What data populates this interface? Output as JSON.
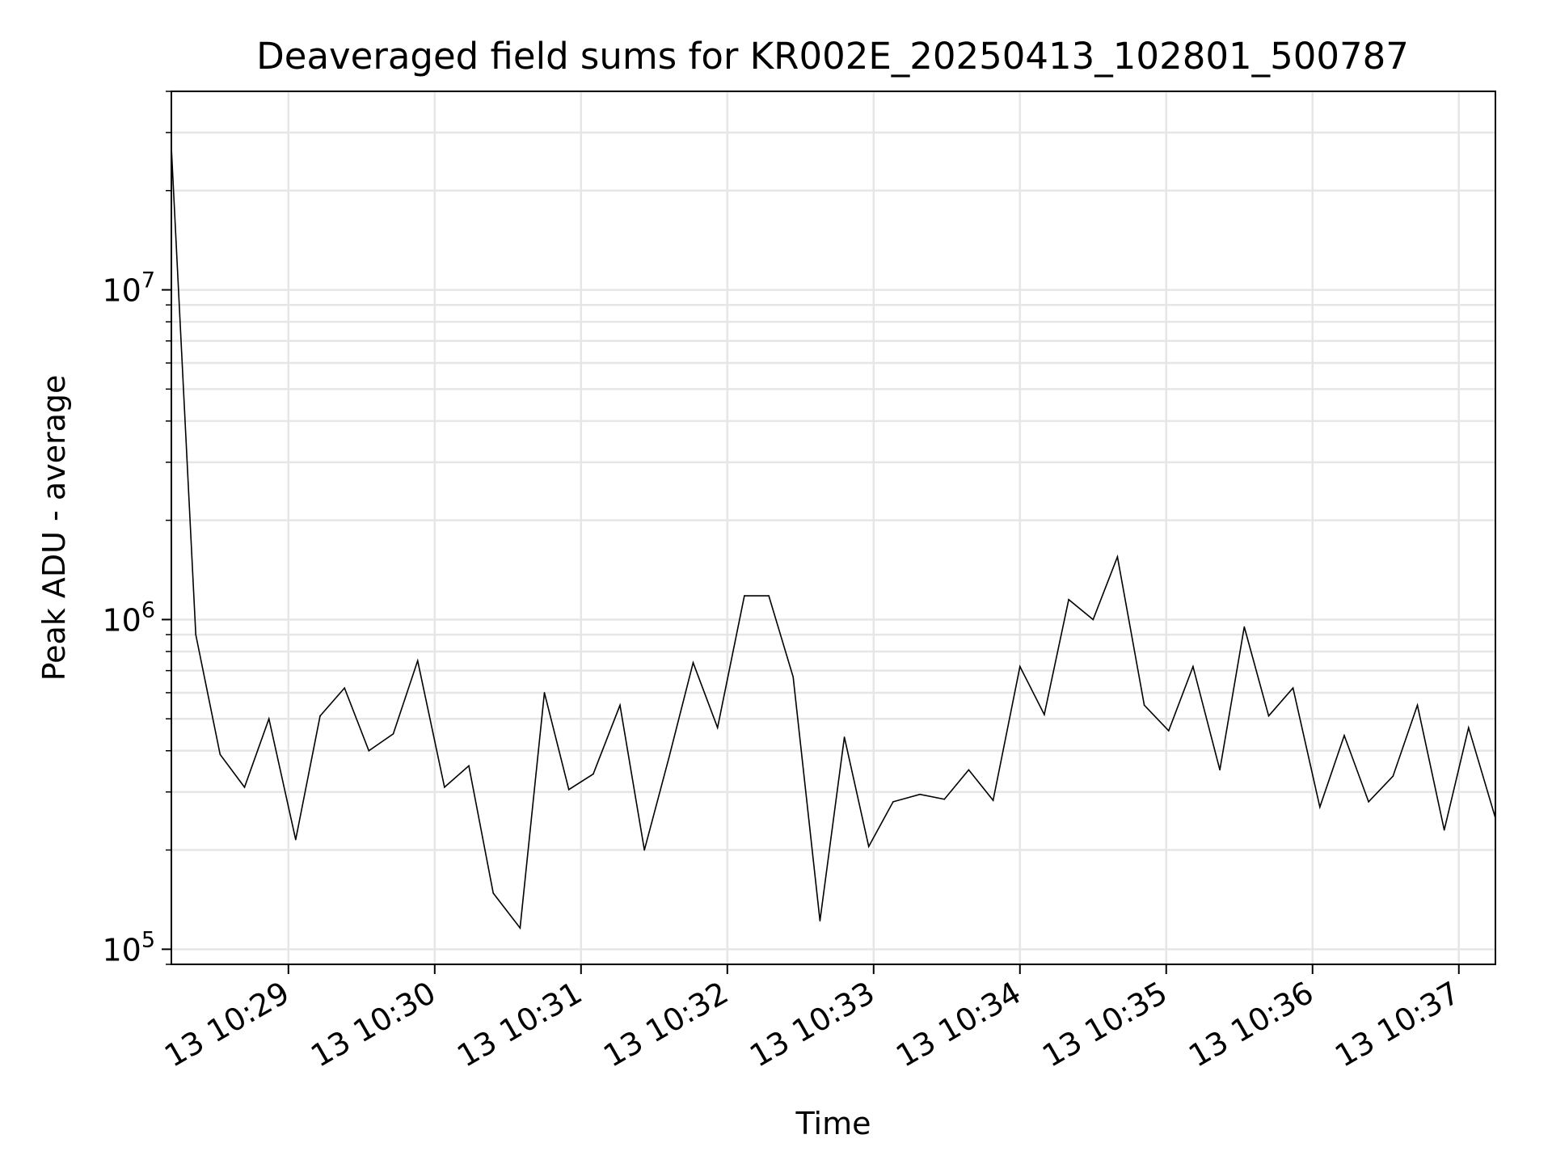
{
  "chart_data": {
    "type": "line",
    "title": "Deaveraged field sums for KR002E_20250413_102801_500787",
    "xlabel": "Time",
    "ylabel": "Peak ADU - average",
    "yscale": "log",
    "ylim": [
      90000,
      40000000
    ],
    "xlim": [
      "2025-04-13 10:28:12",
      "2025-04-13 10:37:15"
    ],
    "grid": true,
    "legend": "none",
    "line_color": "#000000",
    "x_ticks": [
      {
        "value": "2025-04-13 10:29:00",
        "label": "13 10:29"
      },
      {
        "value": "2025-04-13 10:30:00",
        "label": "13 10:30"
      },
      {
        "value": "2025-04-13 10:31:00",
        "label": "13 10:31"
      },
      {
        "value": "2025-04-13 10:32:00",
        "label": "13 10:32"
      },
      {
        "value": "2025-04-13 10:33:00",
        "label": "13 10:33"
      },
      {
        "value": "2025-04-13 10:34:00",
        "label": "13 10:34"
      },
      {
        "value": "2025-04-13 10:35:00",
        "label": "13 10:35"
      },
      {
        "value": "2025-04-13 10:36:00",
        "label": "13 10:36"
      },
      {
        "value": "2025-04-13 10:37:00",
        "label": "13 10:37"
      }
    ],
    "y_ticks": [
      {
        "value": 100000,
        "base": "10",
        "exp": "5"
      },
      {
        "value": 1000000,
        "base": "10",
        "exp": "6"
      },
      {
        "value": 10000000,
        "base": "10",
        "exp": "7"
      }
    ],
    "series": [
      {
        "x": [
          "2025-04-13 10:28:12",
          "2025-04-13 10:28:22",
          "2025-04-13 10:28:32",
          "2025-04-13 10:28:42",
          "2025-04-13 10:28:52",
          "2025-04-13 10:29:03",
          "2025-04-13 10:29:13",
          "2025-04-13 10:29:23",
          "2025-04-13 10:29:33",
          "2025-04-13 10:29:43",
          "2025-04-13 10:29:53",
          "2025-04-13 10:30:04",
          "2025-04-13 10:30:14",
          "2025-04-13 10:30:24",
          "2025-04-13 10:30:35",
          "2025-04-13 10:30:45",
          "2025-04-13 10:30:55",
          "2025-04-13 10:31:05",
          "2025-04-13 10:31:16",
          "2025-04-13 10:31:26",
          "2025-04-13 10:31:36",
          "2025-04-13 10:31:46",
          "2025-04-13 10:31:56",
          "2025-04-13 10:32:07",
          "2025-04-13 10:32:17",
          "2025-04-13 10:32:27",
          "2025-04-13 10:32:38",
          "2025-04-13 10:32:48",
          "2025-04-13 10:32:58",
          "2025-04-13 10:33:08",
          "2025-04-13 10:33:19",
          "2025-04-13 10:33:29",
          "2025-04-13 10:33:39",
          "2025-04-13 10:33:49",
          "2025-04-13 10:34:00",
          "2025-04-13 10:34:10",
          "2025-04-13 10:34:20",
          "2025-04-13 10:34:30",
          "2025-04-13 10:34:40",
          "2025-04-13 10:34:51",
          "2025-04-13 10:35:01",
          "2025-04-13 10:35:11",
          "2025-04-13 10:35:22",
          "2025-04-13 10:35:32",
          "2025-04-13 10:35:42",
          "2025-04-13 10:35:52",
          "2025-04-13 10:36:03",
          "2025-04-13 10:36:13",
          "2025-04-13 10:36:23",
          "2025-04-13 10:36:33",
          "2025-04-13 10:36:43",
          "2025-04-13 10:36:54",
          "2025-04-13 10:37:04",
          "2025-04-13 10:37:15"
        ],
        "y": [
          27000000,
          900000,
          390000,
          310000,
          500000,
          215000,
          510000,
          620000,
          400000,
          450000,
          750000,
          310000,
          360000,
          148000,
          116000,
          600000,
          305000,
          340000,
          550000,
          200000,
          380000,
          740000,
          470000,
          1180000,
          1180000,
          670000,
          122000,
          440000,
          205000,
          280000,
          295000,
          285000,
          350000,
          283000,
          720000,
          515000,
          1150000,
          1000000,
          1550000,
          550000,
          460000,
          720000,
          350000,
          950000,
          510000,
          620000,
          270000,
          445000,
          280000,
          335000,
          550000,
          230000,
          470000,
          250000
        ]
      }
    ]
  }
}
